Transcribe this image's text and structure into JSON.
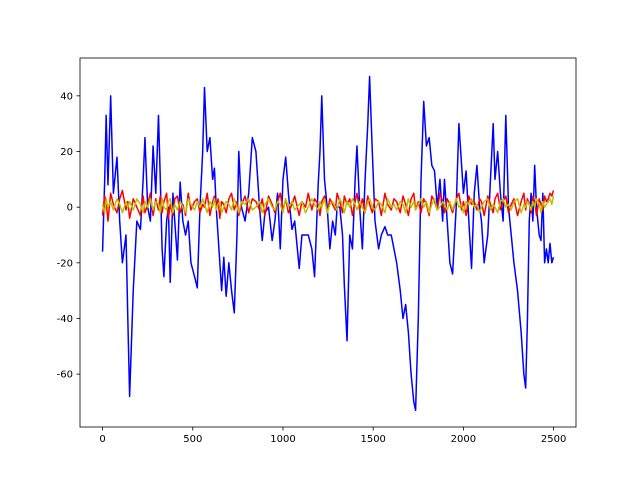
{
  "chart_data": {
    "type": "line",
    "x": [
      0,
      12,
      20,
      30,
      45,
      60,
      80,
      95,
      110,
      130,
      140,
      150,
      170,
      190,
      210,
      225,
      235,
      250,
      265,
      280,
      295,
      310,
      320,
      330,
      340,
      355,
      365,
      375,
      390,
      400,
      415,
      430,
      445,
      460,
      475,
      490,
      510,
      525,
      540,
      555,
      565,
      580,
      595,
      610,
      620,
      630,
      640,
      650,
      660,
      672,
      685,
      700,
      715,
      730,
      745,
      755,
      770,
      790,
      810,
      830,
      850,
      870,
      885,
      900,
      920,
      940,
      955,
      970,
      985,
      1000,
      1015,
      1030,
      1050,
      1065,
      1090,
      1105,
      1125,
      1140,
      1160,
      1175,
      1195,
      1205,
      1215,
      1230,
      1245,
      1260,
      1275,
      1290,
      1300,
      1315,
      1330,
      1340,
      1355,
      1370,
      1385,
      1400,
      1410,
      1425,
      1440,
      1455,
      1470,
      1480,
      1495,
      1510,
      1530,
      1545,
      1565,
      1580,
      1600,
      1615,
      1630,
      1650,
      1665,
      1680,
      1695,
      1710,
      1725,
      1735,
      1750,
      1765,
      1780,
      1795,
      1810,
      1825,
      1840,
      1855,
      1870,
      1885,
      1895,
      1910,
      1925,
      1940,
      1960,
      1975,
      1990,
      2000,
      2015,
      2030,
      2045,
      2060,
      2075,
      2090,
      2100,
      2115,
      2135,
      2150,
      2165,
      2175,
      2190,
      2205,
      2220,
      2235,
      2250,
      2265,
      2280,
      2300,
      2320,
      2335,
      2345,
      2355,
      2365,
      2375,
      2385,
      2395,
      2405,
      2420,
      2430,
      2440,
      2450,
      2460,
      2470,
      2480,
      2490,
      2499
    ],
    "series": [
      {
        "color": "#0000ff",
        "values": [
          -16,
          10,
          33,
          8,
          40,
          5,
          18,
          -5,
          -20,
          -10,
          -40,
          -68,
          -30,
          -5,
          -8,
          10,
          25,
          0,
          -5,
          22,
          5,
          33,
          10,
          -15,
          -25,
          -5,
          0,
          -27,
          5,
          -5,
          -19,
          9,
          -5,
          -10,
          -5,
          -20,
          -25,
          -29,
          0,
          20,
          43,
          20,
          25,
          10,
          14,
          0,
          -10,
          -20,
          -30,
          -18,
          -32,
          -20,
          -30,
          -38,
          -10,
          20,
          0,
          -5,
          5,
          25,
          20,
          0,
          -12,
          -2,
          0,
          -12,
          -5,
          5,
          -15,
          10,
          18,
          5,
          -8,
          -5,
          -22,
          -10,
          -10,
          -10,
          -15,
          -25,
          8,
          20,
          40,
          10,
          0,
          -15,
          -5,
          -10,
          0,
          0,
          -10,
          -28,
          -48,
          -10,
          -15,
          10,
          22,
          0,
          -15,
          10,
          30,
          47,
          20,
          -5,
          -15,
          -10,
          -7,
          -10,
          -10,
          -15,
          -20,
          -30,
          -40,
          -35,
          -45,
          -60,
          -70,
          -73,
          -40,
          10,
          38,
          22,
          25,
          15,
          13,
          0,
          10,
          -5,
          10,
          -5,
          -20,
          -24,
          0,
          30,
          15,
          5,
          13,
          -5,
          -22,
          5,
          15,
          0,
          -5,
          -20,
          -10,
          10,
          30,
          10,
          20,
          5,
          -5,
          33,
          0,
          -10,
          -20,
          -30,
          -45,
          -60,
          -65,
          -40,
          -5,
          5,
          -5,
          15,
          0,
          -10,
          -12,
          5,
          -20,
          -15,
          -20,
          -13,
          -20,
          -18
        ]
      },
      {
        "color": "#ff0000",
        "values": [
          -3,
          4,
          2,
          -5,
          5,
          1,
          -2,
          3,
          6,
          -1,
          2,
          -4,
          3,
          0,
          -3,
          4,
          -2,
          1,
          5,
          -3,
          3,
          -1,
          4,
          -2,
          2,
          5,
          -4,
          1,
          -3,
          3,
          4,
          -2,
          1,
          -3,
          5,
          -1,
          2,
          3,
          -2,
          1,
          0,
          5,
          -3,
          2,
          4,
          -1,
          3,
          -4,
          2,
          1,
          -2,
          3,
          5,
          -1,
          2,
          -3,
          1,
          4,
          -2,
          3,
          2,
          -1,
          3,
          -3,
          4,
          1,
          -2,
          2,
          5,
          -1,
          3,
          -2,
          1,
          4,
          -3,
          2,
          0,
          5,
          -1,
          3,
          1,
          -3,
          2,
          4,
          -2,
          3,
          1,
          -1,
          5,
          2,
          -2,
          4,
          1,
          3,
          -3,
          2,
          5,
          -1,
          3,
          -2,
          4,
          1,
          -2,
          3,
          2,
          -3,
          5,
          1,
          -1,
          3,
          2,
          -2,
          4,
          1,
          -3,
          3,
          5,
          -1,
          2,
          -2,
          3,
          1,
          -3,
          4,
          2,
          -1,
          5,
          2,
          -2,
          3,
          1,
          -2,
          3,
          5,
          -1,
          2,
          -3,
          4,
          1,
          2,
          -1,
          3,
          2,
          -3,
          4,
          1,
          -2,
          3,
          5,
          -1,
          2,
          4,
          -2,
          1,
          3,
          -3,
          2,
          5,
          -1,
          3,
          1,
          -2,
          4,
          2,
          -3,
          3,
          1,
          -1,
          4,
          2,
          3,
          5,
          4,
          6
        ]
      },
      {
        "color": "#bfbf00",
        "values": [
          1,
          -2,
          3,
          0,
          2,
          -1,
          3,
          1,
          -2,
          2,
          0,
          2,
          -1,
          3,
          1,
          -2,
          2,
          0,
          3,
          -1,
          2,
          1,
          -2,
          3,
          0,
          -1,
          2,
          3,
          -2,
          1,
          -1,
          2,
          0,
          -2,
          3,
          1,
          -1,
          2,
          0,
          3,
          1,
          -2,
          2,
          0,
          3,
          -1,
          1,
          2,
          -2,
          0,
          2,
          1,
          -1,
          3,
          0,
          -2,
          2,
          1,
          3,
          -1,
          0,
          2,
          -2,
          1,
          3,
          0,
          -1,
          2,
          1,
          -2,
          3,
          0,
          2,
          -1,
          1,
          2,
          -2,
          0,
          3,
          1,
          -1,
          2,
          0,
          3,
          -2,
          1,
          2,
          0,
          -1,
          3,
          1,
          -2,
          2,
          0,
          3,
          1,
          -1,
          2,
          0,
          -2,
          2,
          3,
          0,
          -1,
          2,
          1,
          -2,
          3,
          0,
          1,
          -1,
          2,
          1,
          -2,
          3,
          0,
          2,
          -1,
          1,
          3,
          0,
          2,
          -2,
          1,
          3,
          -1,
          0,
          2,
          1,
          -1,
          2,
          -1,
          3,
          0,
          1,
          -2,
          2,
          1,
          3,
          0,
          1,
          -2,
          0,
          2,
          3,
          -1,
          1,
          0,
          -2,
          2,
          3,
          0,
          1,
          -1,
          2,
          3,
          -2,
          1,
          0,
          2,
          1,
          -1,
          2,
          0,
          3,
          1,
          -2,
          2,
          0,
          1,
          2,
          3,
          1,
          4
        ]
      }
    ],
    "xlim": [
      -125,
      2624
    ],
    "ylim": [
      -79,
      53.6
    ],
    "xticks": [
      0,
      500,
      1000,
      1500,
      2000,
      2500
    ],
    "yticks": [
      -60,
      -40,
      -20,
      0,
      20,
      40
    ]
  }
}
